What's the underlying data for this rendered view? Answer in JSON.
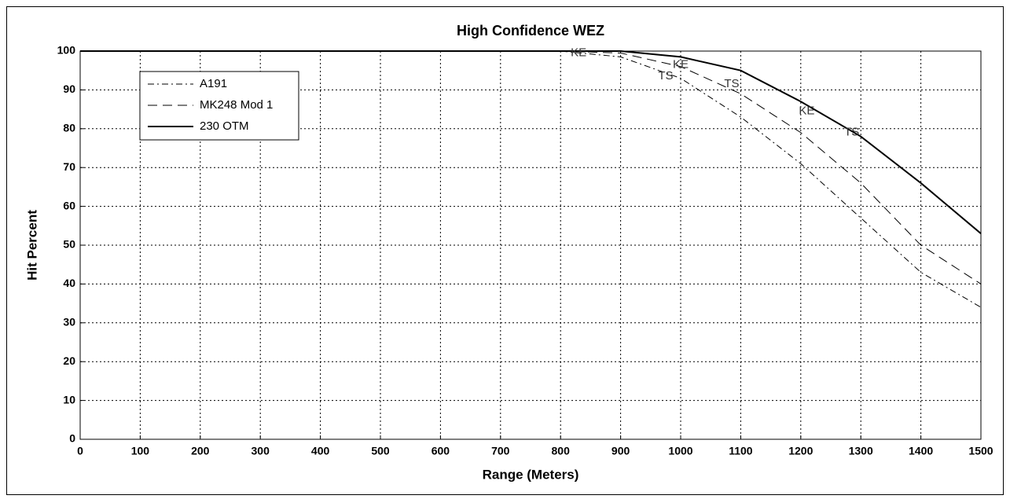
{
  "chart_data": {
    "type": "line",
    "title": "High Confidence WEZ",
    "xlabel": "Range (Meters)",
    "ylabel": "Hit Percent",
    "x": [
      0,
      100,
      200,
      300,
      400,
      500,
      600,
      700,
      800,
      900,
      1000,
      1100,
      1200,
      1300,
      1400,
      1500
    ],
    "series": [
      {
        "name": "A191",
        "color": "#000000",
        "style": "dashdot",
        "values": [
          100,
          100,
          100,
          100,
          100,
          100,
          100,
          100,
          100,
          98.5,
          93,
          83,
          71,
          57,
          43,
          34
        ]
      },
      {
        "name": "MK248 Mod 1",
        "color": "#000000",
        "style": "dashed",
        "values": [
          100,
          100,
          100,
          100,
          100,
          100,
          100,
          100,
          100,
          99.5,
          96,
          89,
          79,
          66,
          50,
          40
        ]
      },
      {
        "name": "230 OTM",
        "color": "#000000",
        "style": "solid",
        "values": [
          100,
          100,
          100,
          100,
          100,
          100,
          100,
          100,
          100,
          100,
          98.5,
          95,
          87,
          78,
          66,
          53
        ]
      }
    ],
    "annotations": [
      {
        "text": "KE",
        "x": 830,
        "y": 99.5
      },
      {
        "text": "TS",
        "x": 975,
        "y": 93.5
      },
      {
        "text": "KE",
        "x": 1000,
        "y": 96.5
      },
      {
        "text": "TS",
        "x": 1085,
        "y": 91.5
      },
      {
        "text": "KE",
        "x": 1210,
        "y": 84.5
      },
      {
        "text": "TS",
        "x": 1285,
        "y": 79
      }
    ],
    "xlim": [
      0,
      1500
    ],
    "xticks": [
      0,
      100,
      200,
      300,
      400,
      500,
      600,
      700,
      800,
      900,
      1000,
      1100,
      1200,
      1300,
      1400,
      1500
    ],
    "ylim": [
      0,
      100
    ],
    "yticks": [
      0,
      10,
      20,
      30,
      40,
      50,
      60,
      70,
      80,
      90,
      100
    ],
    "grid": true,
    "legend": "northwest"
  }
}
